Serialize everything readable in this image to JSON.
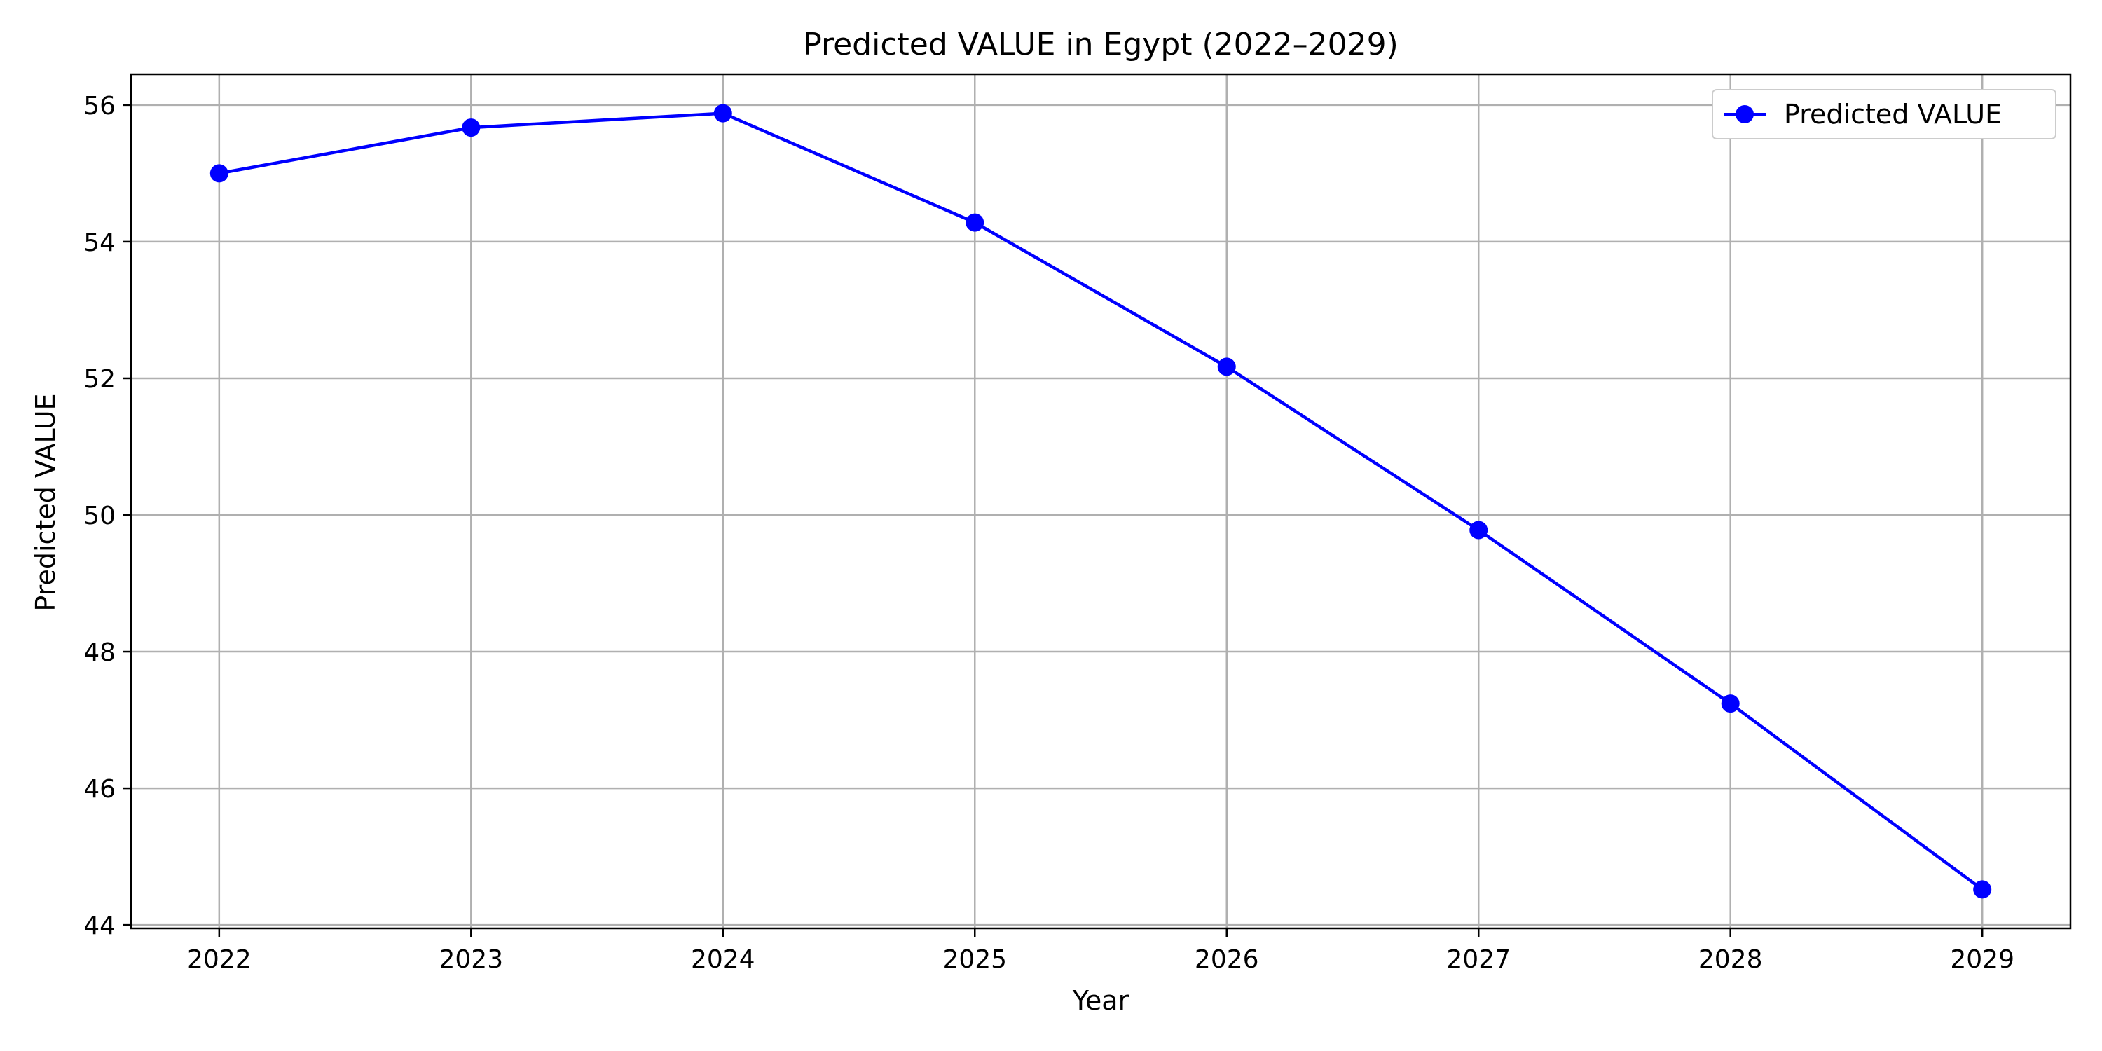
{
  "chart_data": {
    "type": "line",
    "title": "Predicted VALUE in Egypt (2022–2029)",
    "xlabel": "Year",
    "ylabel": "Predicted VALUE",
    "x": [
      2022,
      2023,
      2024,
      2025,
      2026,
      2027,
      2028,
      2029
    ],
    "x_tick_labels": [
      "2022",
      "2023",
      "2024",
      "2025",
      "2026",
      "2027",
      "2028",
      "2029"
    ],
    "y_ticks": [
      44,
      46,
      48,
      50,
      52,
      54,
      56
    ],
    "y_tick_labels": [
      "44",
      "46",
      "48",
      "50",
      "52",
      "54",
      "56"
    ],
    "xlim": [
      2021.65,
      2029.35
    ],
    "ylim": [
      43.95,
      56.45
    ],
    "grid": true,
    "legend_position": "top-right",
    "series": [
      {
        "name": "Predicted VALUE",
        "color": "#0000ff",
        "marker": "circle",
        "values": [
          55.0,
          55.67,
          55.88,
          54.28,
          52.17,
          49.78,
          47.24,
          44.52
        ]
      }
    ]
  }
}
